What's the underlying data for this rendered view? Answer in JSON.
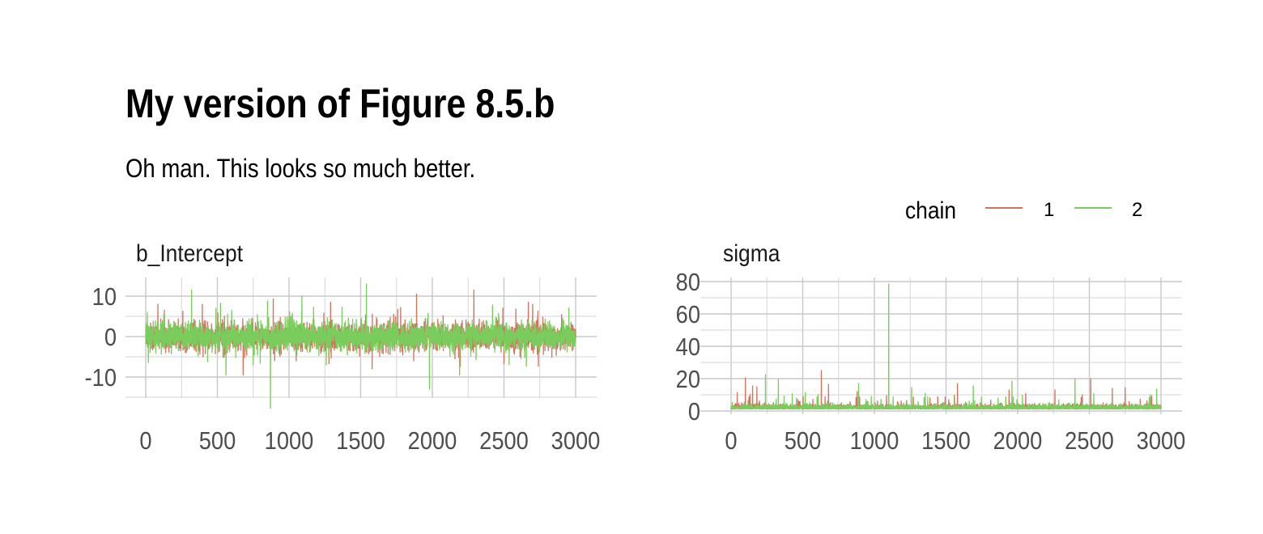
{
  "title": "My version of Figure 8.5.b",
  "subtitle": "Oh man. This looks so much better.",
  "legend": {
    "title": "chain",
    "position": "top-right",
    "entries": [
      {
        "label": "1",
        "color": "#D2735F"
      },
      {
        "label": "2",
        "color": "#7ACC5C"
      }
    ]
  },
  "chart_data": [
    {
      "type": "line",
      "panel_title": "b_Intercept",
      "xlim": [
        0,
        3000
      ],
      "ylim": [
        -15.5,
        14.5
      ],
      "x_ticks": [
        "0",
        "500",
        "1000",
        "1500",
        "2000",
        "2500",
        "3000"
      ],
      "y_ticks": [
        "-10",
        "0",
        "10"
      ],
      "grid": true,
      "series": [
        {
          "name": "1",
          "color": "#D2735F",
          "typical_range": [
            -3,
            3
          ],
          "spikes": [
            [
              85,
              8
            ],
            [
              130,
              6.5
            ],
            [
              400,
              -5
            ],
            [
              680,
              -9.5
            ],
            [
              890,
              9.3
            ],
            [
              1050,
              -6
            ],
            [
              1290,
              8.5
            ],
            [
              1580,
              -8
            ],
            [
              1730,
              5.5
            ],
            [
              1890,
              10.5
            ],
            [
              2290,
              11.5
            ],
            [
              2500,
              -6.7
            ],
            [
              2670,
              8.5
            ],
            [
              2740,
              -7.3
            ],
            [
              2700,
              8
            ]
          ]
        },
        {
          "name": "2",
          "color": "#7ACC5C",
          "typical_range": [
            -3,
            3
          ],
          "spikes": [
            [
              320,
              11.5
            ],
            [
              490,
              7
            ],
            [
              560,
              -9.5
            ],
            [
              600,
              6.5
            ],
            [
              750,
              -7
            ],
            [
              850,
              8.8
            ],
            [
              870,
              -17.7
            ],
            [
              1090,
              10
            ],
            [
              1260,
              -7
            ],
            [
              1370,
              7.3
            ],
            [
              1540,
              13
            ],
            [
              1980,
              -13
            ],
            [
              2190,
              -9.5
            ],
            [
              2420,
              7.8
            ]
          ]
        }
      ]
    },
    {
      "type": "line",
      "panel_title": "sigma",
      "xlim": [
        0,
        3000
      ],
      "ylim": [
        -2,
        82
      ],
      "x_ticks": [
        "0",
        "500",
        "1000",
        "1500",
        "2000",
        "2500",
        "3000"
      ],
      "y_ticks": [
        "0",
        "20",
        "40",
        "60",
        "80"
      ],
      "grid": true,
      "series": [
        {
          "name": "1",
          "color": "#D2735F",
          "typical_range": [
            0.5,
            6
          ],
          "spikes": [
            [
              100,
              20.5
            ],
            [
              150,
              15.5
            ],
            [
              180,
              15
            ],
            [
              630,
              25
            ],
            [
              680,
              16.5
            ],
            [
              880,
              12
            ],
            [
              1580,
              17
            ],
            [
              1940,
              13
            ],
            [
              2260,
              13
            ],
            [
              2510,
              20
            ],
            [
              2660,
              14
            ],
            [
              2750,
              14.5
            ]
          ]
        },
        {
          "name": "2",
          "color": "#7ACC5C",
          "typical_range": [
            0.5,
            6
          ],
          "spikes": [
            [
              240,
              22.5
            ],
            [
              330,
              19.5
            ],
            [
              890,
              17
            ],
            [
              1100,
              78.5
            ],
            [
              1260,
              14.5
            ],
            [
              1690,
              15.5
            ],
            [
              1960,
              18.5
            ],
            [
              2400,
              20
            ],
            [
              2970,
              13.5
            ]
          ]
        }
      ]
    }
  ]
}
